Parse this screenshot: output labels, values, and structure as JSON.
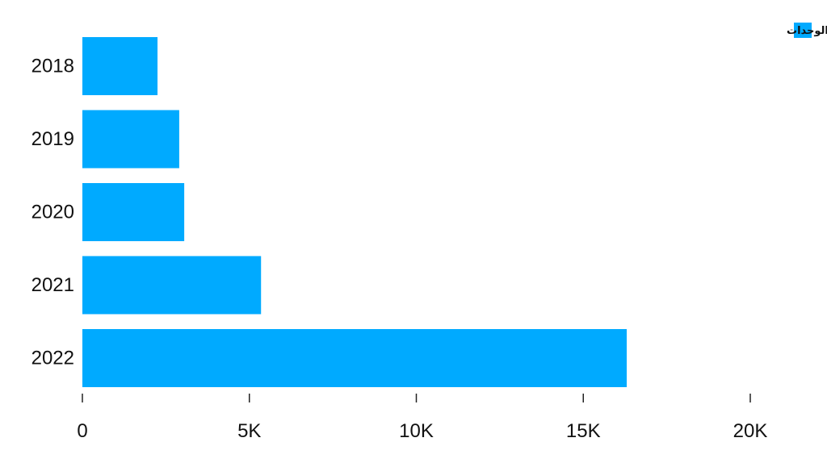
{
  "chart_data": {
    "type": "bar",
    "orientation": "horizontal",
    "categories": [
      "2018",
      "2019",
      "2020",
      "2021",
      "2022"
    ],
    "series": [
      {
        "name": "عدد الوحدات",
        "values": [
          2250,
          2900,
          3050,
          5350,
          16300
        ],
        "color": "#00aaff"
      }
    ],
    "x_ticks": [
      0,
      5000,
      10000,
      15000,
      20000
    ],
    "x_tick_labels": [
      "0",
      "5K",
      "10K",
      "15K",
      "20K"
    ],
    "xlim": [
      0,
      20000
    ],
    "grid": false,
    "legend_position": "top-right"
  }
}
